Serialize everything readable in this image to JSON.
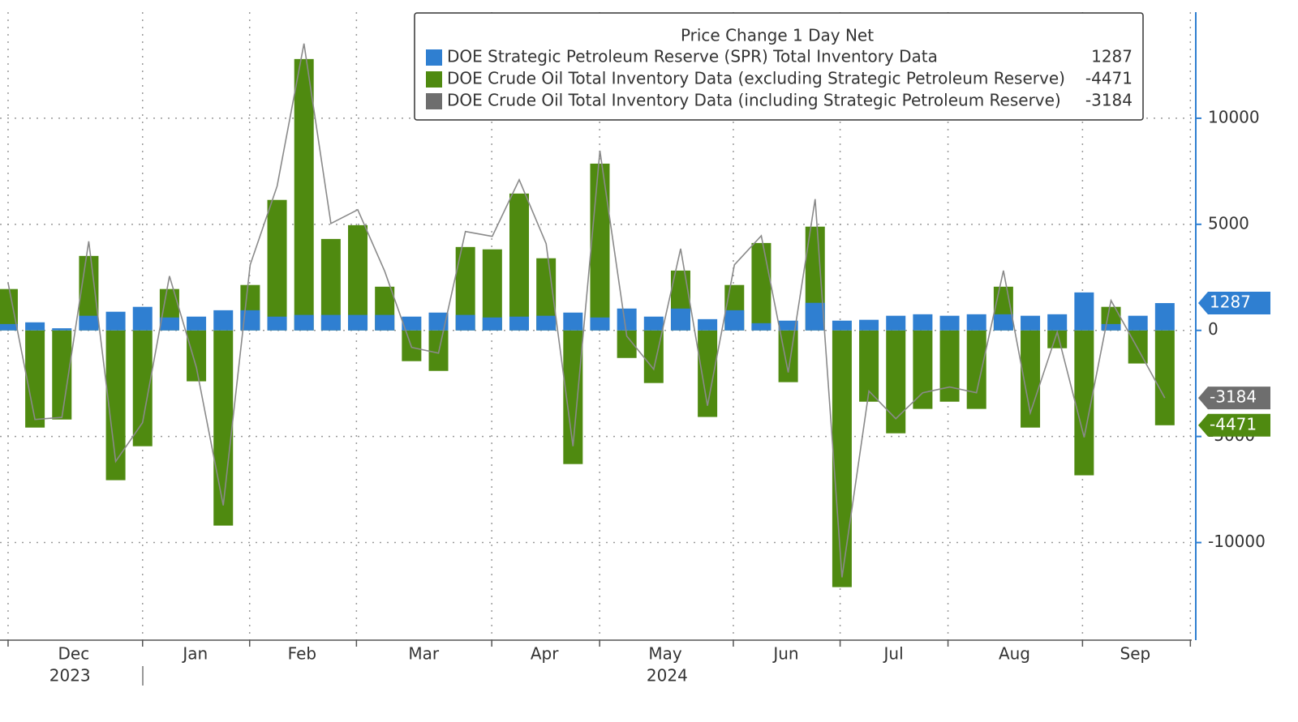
{
  "chart_data": {
    "type": "bar",
    "legend_title": "Price Change 1 Day Net",
    "categories": [
      null,
      null,
      null,
      null,
      null,
      null,
      null,
      null,
      null,
      null,
      null,
      null,
      null,
      null,
      null,
      null,
      null,
      null,
      null,
      null,
      null,
      null,
      null,
      null,
      null,
      null,
      null,
      null,
      null,
      null,
      null,
      null,
      null,
      null,
      null,
      null,
      null,
      null,
      null,
      null,
      null,
      null,
      null,
      null
    ],
    "series": [
      {
        "name": "DOE Strategic Petroleum Reserve (SPR) Total Inventory Data",
        "color": "#2f7fd1",
        "mark": "bar",
        "values": [
          300,
          380,
          100,
          690,
          880,
          1110,
          610,
          650,
          950,
          950,
          650,
          730,
          730,
          730,
          730,
          650,
          840,
          730,
          610,
          650,
          690,
          840,
          610,
          1030,
          650,
          1030,
          530,
          950,
          340,
          460,
          1300,
          460,
          500,
          690,
          760,
          690,
          760,
          760,
          690,
          760,
          1790,
          300,
          690,
          1287
        ]
      },
      {
        "name": "DOE Crude Oil Total Inventory Data (excluding Strategic Petroleum Reserve)",
        "color": "#4f8a10",
        "mark": "bar",
        "values": [
          1950,
          -4580,
          -4200,
          3510,
          -7060,
          -5460,
          1950,
          -2400,
          -9200,
          2140,
          6150,
          12790,
          4310,
          4960,
          2060,
          -1450,
          -1910,
          3930,
          3820,
          6450,
          3400,
          -6300,
          7860,
          -1300,
          -2480,
          2820,
          -4080,
          2140,
          4120,
          -2440,
          4890,
          -12100,
          -3360,
          -4850,
          -3700,
          -3360,
          -3700,
          2060,
          -4580,
          -840,
          -6830,
          1110,
          -1560,
          -4471
        ]
      },
      {
        "name": "DOE Crude Oil Total Inventory Data (including Strategic Petroleum Reserve)",
        "color": "#6e6e6e",
        "mark": "line",
        "values": [
          2250,
          -4200,
          -4100,
          4200,
          -6180,
          -4350,
          2560,
          -1750,
          -8250,
          3090,
          6800,
          13520,
          5040,
          5690,
          2790,
          -800,
          -1070,
          4660,
          4430,
          7100,
          4090,
          -5460,
          8470,
          -270,
          -1830,
          3850,
          -3550,
          3090,
          4460,
          -1980,
          6190,
          -11640,
          -2860,
          -4160,
          -2940,
          -2670,
          -2940,
          2820,
          -3890,
          -80,
          -5040,
          1410,
          -870,
          -3184
        ]
      }
    ],
    "xlim": [
      -0.3,
      44
    ],
    "xticks": [
      {
        "value": 2.44,
        "label": "Dec"
      },
      {
        "value": 6.96,
        "label": "Jan"
      },
      {
        "value": 10.93,
        "label": "Feb"
      },
      {
        "value": 15.45,
        "label": "Mar"
      },
      {
        "value": 19.94,
        "label": "Apr"
      },
      {
        "value": 24.43,
        "label": "May"
      },
      {
        "value": 28.92,
        "label": "Jun"
      },
      {
        "value": 32.92,
        "label": "Jul"
      },
      {
        "value": 37.41,
        "label": "Aug"
      },
      {
        "value": 41.9,
        "label": "Sep"
      }
    ],
    "xgrid": [
      0,
      5,
      8.98,
      12.95,
      17.98,
      21.99,
      26.96,
      30.93,
      34.94,
      39.94,
      43.95
    ],
    "year_labels": [
      {
        "value": 2.3,
        "label": "2023"
      },
      {
        "value": 24.5,
        "label": "2024"
      }
    ],
    "ylim": [
      -14600,
      15000
    ],
    "yticks": [
      10000,
      5000,
      0,
      -5000,
      -10000
    ],
    "grid": true
  }
}
